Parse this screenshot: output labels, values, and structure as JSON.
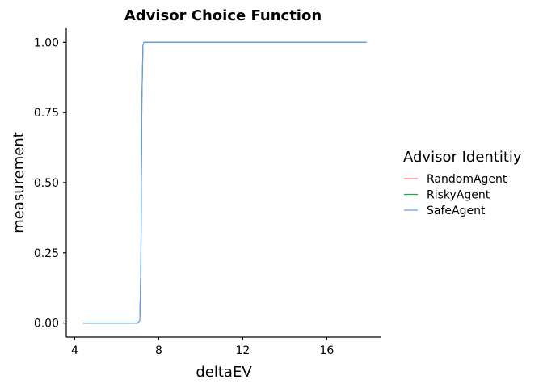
{
  "chart_data": {
    "type": "line",
    "title": "Advisor Choice Function",
    "xlabel": "deltaEV",
    "ylabel": "measurement",
    "xlim": [
      3.6,
      18.6
    ],
    "ylim": [
      -0.05,
      1.05
    ],
    "xticks": [
      4,
      8,
      12,
      16
    ],
    "yticks": [
      0.0,
      0.25,
      0.5,
      0.75,
      1.0
    ],
    "ytick_labels": [
      "0.00",
      "0.25",
      "0.50",
      "0.75",
      "1.00"
    ],
    "grid": false,
    "legend": {
      "title": "Advisor Identitiy",
      "placement": "right"
    },
    "series": [
      {
        "name": "RandomAgent",
        "color": "#F8766D",
        "x": [
          4.4,
          6.5,
          7.0,
          7.1,
          7.15,
          7.2,
          7.25,
          7.3,
          7.4,
          8.0,
          12.0,
          16.0,
          17.9
        ],
        "y": [
          0,
          0,
          0,
          0.01,
          0.2,
          0.8,
          0.99,
          1,
          1,
          1,
          1,
          1,
          1
        ]
      },
      {
        "name": "RiskyAgent",
        "color": "#00BA38",
        "x": [
          4.4,
          6.5,
          7.0,
          7.1,
          7.15,
          7.2,
          7.25,
          7.3,
          7.4,
          8.0,
          12.0,
          16.0,
          17.9
        ],
        "y": [
          0,
          0,
          0,
          0.01,
          0.2,
          0.8,
          0.99,
          1,
          1,
          1,
          1,
          1,
          1
        ]
      },
      {
        "name": "SafeAgent",
        "color": "#619CFF",
        "x": [
          4.4,
          6.5,
          7.0,
          7.1,
          7.15,
          7.2,
          7.25,
          7.3,
          7.4,
          8.0,
          12.0,
          16.0,
          17.9
        ],
        "y": [
          0,
          0,
          0,
          0.01,
          0.2,
          0.8,
          0.99,
          1,
          1,
          1,
          1,
          1,
          1
        ]
      }
    ]
  }
}
